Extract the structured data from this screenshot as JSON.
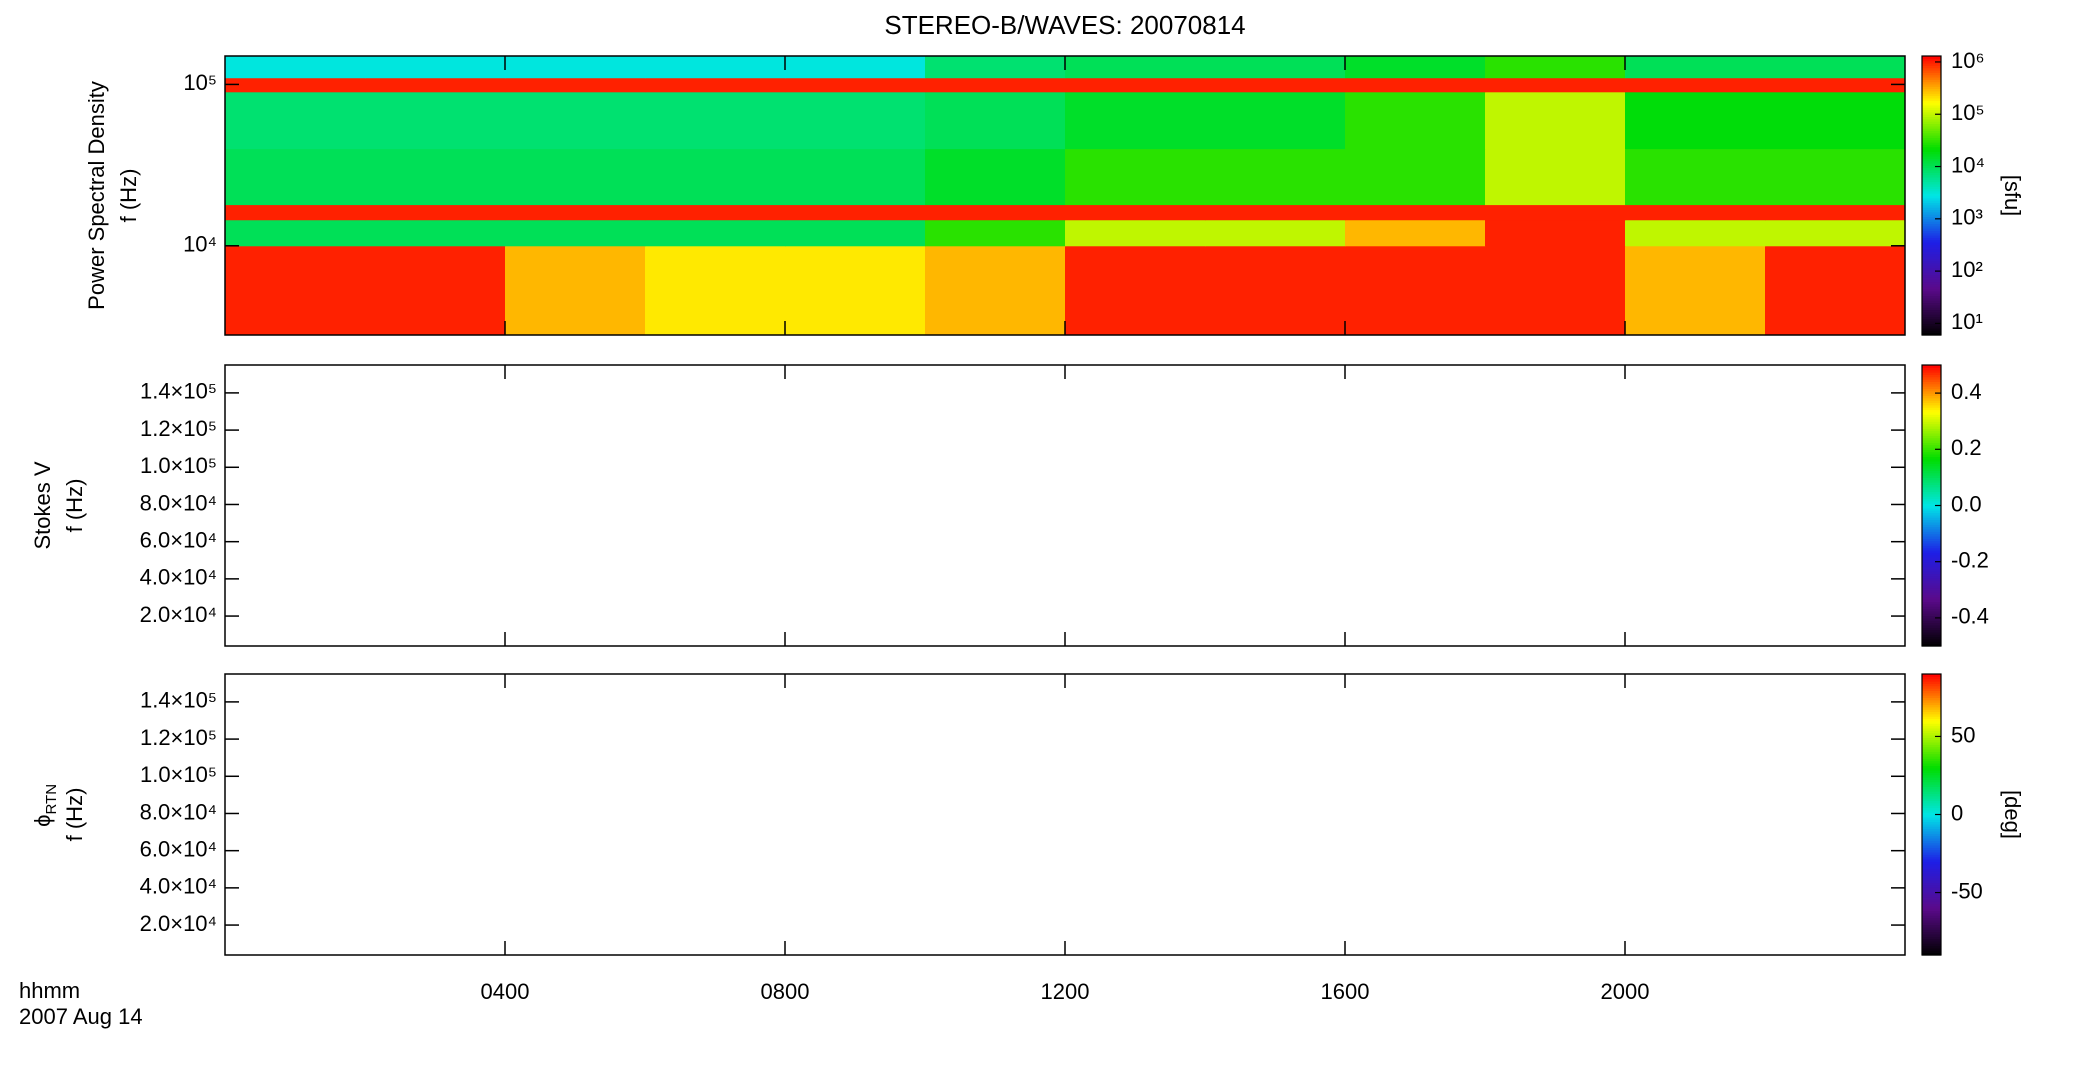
{
  "title": "STEREO-B/WAVES: 20070814",
  "x_axis": {
    "label": "hhmm",
    "date": "2007 Aug 14",
    "xlim": [
      0,
      24
    ],
    "xticks": [
      {
        "value": 4,
        "label": "0400"
      },
      {
        "value": 8,
        "label": "0800"
      },
      {
        "value": 12,
        "label": "1200"
      },
      {
        "value": 16,
        "label": "1600"
      },
      {
        "value": 20,
        "label": "2000"
      }
    ]
  },
  "chart_data": [
    {
      "type": "heatmap",
      "quantity": "Power Spectral Density",
      "ylabel": "f (Hz)",
      "log_y": true,
      "ylim": [
        2800,
        150000
      ],
      "yticks": [
        {
          "value": 10000,
          "label": "10⁴"
        },
        {
          "value": 100000,
          "label": "10⁵"
        }
      ],
      "x_edges": [
        0,
        2,
        4,
        6,
        8,
        10,
        12,
        14,
        16,
        18,
        20,
        22,
        24
      ],
      "y_edges": [
        2800,
        10000,
        14500,
        18000,
        40000,
        90000,
        110000,
        150000
      ],
      "z": [
        [
          1000000,
          1000000,
          300000,
          200000,
          200000,
          300000,
          1000000,
          1000000,
          1000000,
          1000000,
          300000,
          1000000
        ],
        [
          10000,
          10000,
          10000,
          10000,
          10000,
          30000,
          100000,
          100000,
          300000,
          1000000,
          100000,
          100000
        ],
        [
          1000000,
          1000000,
          1000000,
          1000000,
          1000000,
          1000000,
          1000000,
          1000000,
          1000000,
          1000000,
          1000000,
          1000000
        ],
        [
          10000,
          10000,
          10000,
          10000,
          10000,
          15000,
          30000,
          30000,
          30000,
          100000,
          30000,
          30000
        ],
        [
          8000,
          8000,
          8000,
          8000,
          8000,
          10000,
          15000,
          15000,
          30000,
          100000,
          20000,
          20000
        ],
        [
          1000000,
          1000000,
          1000000,
          1000000,
          1000000,
          1000000,
          1000000,
          1000000,
          1000000,
          1000000,
          1000000,
          1000000
        ],
        [
          3000,
          3000,
          3000,
          3000,
          3000,
          8000,
          10000,
          10000,
          15000,
          30000,
          10000,
          10000
        ]
      ],
      "zlim": [
        6,
        1300000
      ],
      "log_z": true,
      "zticks": [
        {
          "value": 10,
          "label": "10¹"
        },
        {
          "value": 100,
          "label": "10²"
        },
        {
          "value": 1000,
          "label": "10³"
        },
        {
          "value": 10000,
          "label": "10⁴"
        },
        {
          "value": 100000,
          "label": "10⁵"
        },
        {
          "value": 1000000,
          "label": "10⁶"
        }
      ],
      "zlabel": "[sfu]"
    },
    {
      "type": "heatmap",
      "quantity": "Stokes V",
      "ylabel": "f (Hz)",
      "log_y": false,
      "ylim": [
        3900,
        155000
      ],
      "yticks": [
        {
          "value": 20000,
          "label": "2.0×10⁴"
        },
        {
          "value": 40000,
          "label": "4.0×10⁴"
        },
        {
          "value": 60000,
          "label": "6.0×10⁴"
        },
        {
          "value": 80000,
          "label": "8.0×10⁴"
        },
        {
          "value": 100000,
          "label": "1.0×10⁵"
        },
        {
          "value": 120000,
          "label": "1.2×10⁵"
        },
        {
          "value": 140000,
          "label": "1.4×10⁵"
        }
      ],
      "zlim": [
        -0.5,
        0.5
      ],
      "log_z": false,
      "zticks": [
        -0.4,
        -0.2,
        {
          "value": 0,
          "label": "0.0"
        },
        0.2,
        0.4
      ]
    },
    {
      "type": "heatmap",
      "quantity": "ϕ",
      "quantity_sub": "RTN",
      "ylabel": "f (Hz)",
      "log_y": false,
      "ylim": [
        3900,
        155000
      ],
      "yticks": [
        {
          "value": 20000,
          "label": "2.0×10⁴"
        },
        {
          "value": 40000,
          "label": "4.0×10⁴"
        },
        {
          "value": 60000,
          "label": "6.0×10⁴"
        },
        {
          "value": 80000,
          "label": "8.0×10⁴"
        },
        {
          "value": 100000,
          "label": "1.0×10⁵"
        },
        {
          "value": 120000,
          "label": "1.2×10⁵"
        },
        {
          "value": 140000,
          "label": "1.4×10⁵"
        }
      ],
      "zlim": [
        -90,
        90
      ],
      "log_z": false,
      "zticks": [
        -50,
        0,
        50
      ],
      "zlabel": "[deg]"
    }
  ],
  "colormap": [
    "#000000",
    "#5a0a8a",
    "#1e1ee6",
    "#00e6e6",
    "#00dd00",
    "#ffff00",
    "#ff0000"
  ]
}
